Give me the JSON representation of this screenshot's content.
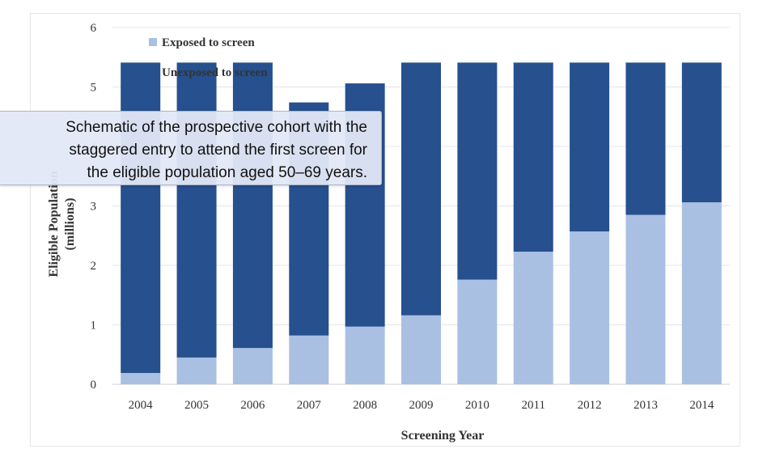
{
  "tooltip": {
    "text": "Schematic of the prospective cohort with the\nstaggered entry to attend the first screen for\nthe eligible population aged 50–69 years."
  },
  "chart_data": {
    "type": "bar",
    "stacked": true,
    "categories": [
      "2004",
      "2005",
      "2006",
      "2007",
      "2008",
      "2009",
      "2010",
      "2011",
      "2012",
      "2013",
      "2014"
    ],
    "series": [
      {
        "name": "Exposed to screen",
        "color": "#a9c0e2",
        "values": [
          0.19,
          0.45,
          0.61,
          0.82,
          0.97,
          1.16,
          1.76,
          2.23,
          2.57,
          2.85,
          3.06
        ]
      },
      {
        "name": "Unexposed to screen",
        "color": "#26508e",
        "values": [
          5.22,
          4.96,
          4.8,
          3.92,
          4.09,
          4.25,
          3.65,
          3.18,
          2.84,
          2.56,
          2.35
        ]
      }
    ],
    "xlabel": "Screening Year",
    "ylabel": "Eligible Population\n(millions)",
    "ylim": [
      0,
      6
    ],
    "yticks": [
      0,
      1,
      2,
      3,
      4,
      5,
      6
    ],
    "grid": true,
    "legend_position": "top-left"
  }
}
